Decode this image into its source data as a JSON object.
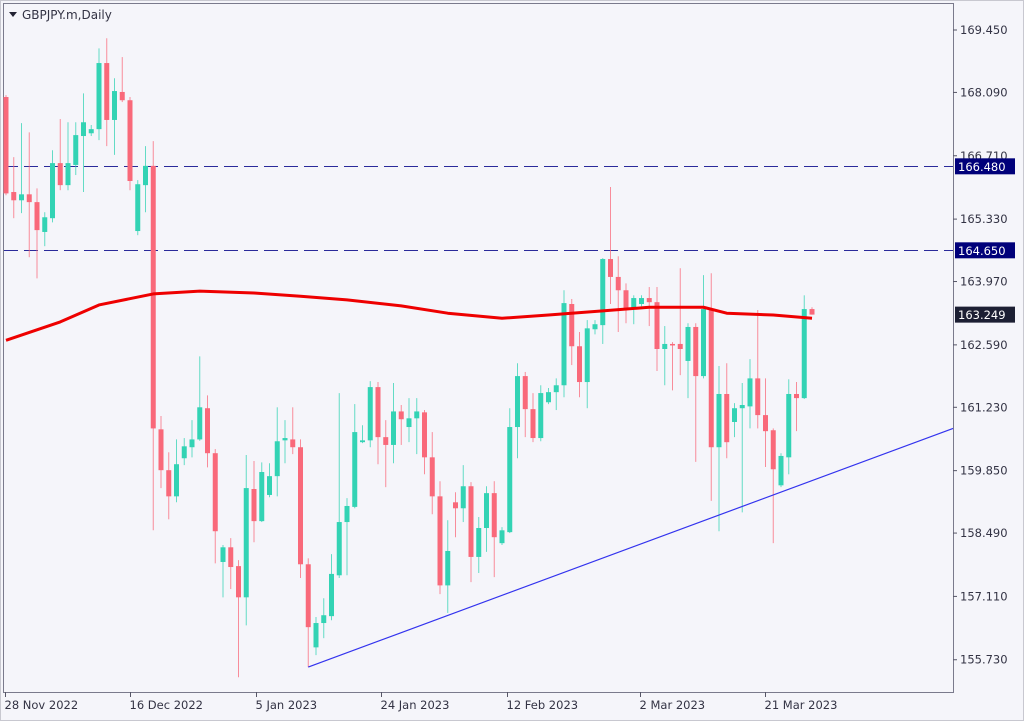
{
  "window": {
    "title": "GBPJPY.m,Daily"
  },
  "colors": {
    "bull": "#33d3b4",
    "bear": "#f9697a",
    "ma": "#ee0000",
    "hline": "#2a2a9a",
    "trend": "#3333ee",
    "bg": "#f5f5fa",
    "hline_label_bg": "#00007a",
    "price_label_bg": "#1c1f33"
  },
  "chart_data": {
    "type": "candlestick",
    "title": "GBPJPY.m,Daily",
    "ylim": [
      155.73,
      169.45
    ],
    "y_ticks": [
      "169.450",
      "168.090",
      "166.710",
      "165.330",
      "163.970",
      "162.590",
      "161.230",
      "159.850",
      "158.490",
      "157.110",
      "155.730"
    ],
    "x_ticks": [
      {
        "label": "28 Nov 2022",
        "index": 0
      },
      {
        "label": "16 Dec 2022",
        "index": 16
      },
      {
        "label": "5 Jan 2023",
        "index": 32
      },
      {
        "label": "24 Jan 2023",
        "index": 48
      },
      {
        "label": "12 Feb 2023",
        "index": 64
      },
      {
        "label": "2 Mar 2023",
        "index": 81
      },
      {
        "label": "21 Mar 2023",
        "index": 97
      }
    ],
    "ohlc_fields": [
      "open",
      "high",
      "low",
      "close"
    ],
    "candles": [
      [
        167.99,
        168.03,
        165.85,
        165.89
      ],
      [
        165.92,
        166.68,
        165.35,
        165.74
      ],
      [
        165.74,
        167.42,
        165.46,
        165.87
      ],
      [
        165.87,
        167.22,
        164.5,
        165.7
      ],
      [
        165.7,
        166.0,
        164.04,
        165.09
      ],
      [
        165.05,
        165.48,
        164.74,
        165.37
      ],
      [
        165.35,
        166.83,
        165.26,
        166.55
      ],
      [
        166.55,
        167.51,
        165.96,
        166.07
      ],
      [
        166.07,
        167.44,
        165.96,
        166.55
      ],
      [
        166.51,
        167.44,
        166.29,
        167.16
      ],
      [
        167.14,
        168.07,
        165.92,
        167.44
      ],
      [
        167.2,
        167.38,
        167.14,
        167.29
      ],
      [
        167.29,
        169.05,
        167.05,
        168.73
      ],
      [
        168.73,
        169.27,
        166.92,
        167.49
      ],
      [
        167.49,
        168.4,
        166.73,
        168.12
      ],
      [
        168.1,
        168.86,
        167.88,
        167.92
      ],
      [
        167.92,
        167.99,
        165.96,
        166.16
      ],
      [
        165.07,
        166.18,
        164.98,
        166.09
      ],
      [
        166.07,
        166.92,
        165.48,
        166.49
      ],
      [
        166.49,
        167.03,
        158.55,
        160.77
      ],
      [
        160.75,
        161.04,
        159.47,
        159.86
      ],
      [
        159.86,
        160.25,
        158.79,
        159.29
      ],
      [
        159.29,
        160.53,
        159.16,
        159.99
      ],
      [
        160.12,
        160.56,
        159.97,
        160.38
      ],
      [
        160.36,
        160.95,
        160.14,
        160.53
      ],
      [
        160.53,
        162.34,
        160.5,
        161.23
      ],
      [
        161.21,
        161.49,
        159.92,
        160.23
      ],
      [
        160.23,
        160.32,
        157.83,
        158.53
      ],
      [
        157.86,
        158.23,
        157.09,
        158.18
      ],
      [
        158.18,
        158.38,
        157.27,
        157.75
      ],
      [
        157.77,
        157.9,
        155.35,
        157.09
      ],
      [
        157.09,
        160.19,
        156.48,
        159.47
      ],
      [
        159.45,
        160.06,
        158.29,
        158.75
      ],
      [
        158.75,
        160.03,
        158.73,
        159.82
      ],
      [
        159.32,
        160.01,
        159.27,
        159.73
      ],
      [
        159.73,
        161.23,
        159.29,
        160.49
      ],
      [
        160.51,
        160.95,
        160.01,
        160.56
      ],
      [
        160.53,
        161.23,
        160.21,
        160.36
      ],
      [
        160.36,
        160.53,
        157.51,
        157.81
      ],
      [
        157.81,
        157.94,
        155.57,
        156.44
      ],
      [
        156.0,
        156.66,
        155.83,
        156.53
      ],
      [
        156.53,
        157.07,
        156.2,
        156.7
      ],
      [
        156.68,
        158.03,
        156.59,
        157.6
      ],
      [
        157.57,
        161.54,
        157.51,
        158.73
      ],
      [
        158.73,
        159.25,
        157.57,
        159.08
      ],
      [
        159.06,
        161.3,
        159.03,
        160.69
      ],
      [
        160.47,
        160.84,
        160.45,
        160.51
      ],
      [
        160.51,
        161.8,
        160.36,
        161.67
      ],
      [
        161.67,
        161.78,
        159.99,
        160.58
      ],
      [
        160.58,
        160.95,
        159.49,
        160.41
      ],
      [
        160.41,
        161.76,
        160.01,
        161.14
      ],
      [
        161.14,
        161.28,
        160.41,
        160.97
      ],
      [
        160.8,
        161.43,
        160.47,
        160.99
      ],
      [
        160.99,
        161.43,
        160.21,
        161.14
      ],
      [
        161.12,
        161.17,
        159.77,
        160.14
      ],
      [
        160.14,
        160.69,
        158.9,
        159.29
      ],
      [
        159.29,
        159.62,
        157.16,
        157.35
      ],
      [
        157.35,
        158.77,
        156.75,
        158.1
      ],
      [
        159.16,
        159.38,
        158.4,
        159.03
      ],
      [
        159.03,
        159.97,
        158.73,
        159.51
      ],
      [
        159.51,
        159.6,
        157.42,
        157.97
      ],
      [
        157.97,
        158.84,
        157.62,
        158.6
      ],
      [
        158.6,
        159.51,
        158.08,
        159.36
      ],
      [
        159.36,
        159.62,
        157.53,
        158.4
      ],
      [
        158.27,
        158.62,
        158.23,
        158.55
      ],
      [
        158.51,
        161.21,
        158.49,
        160.8
      ],
      [
        160.8,
        162.19,
        160.12,
        161.91
      ],
      [
        161.91,
        162.0,
        160.58,
        161.19
      ],
      [
        161.19,
        161.54,
        160.47,
        160.56
      ],
      [
        160.56,
        161.71,
        160.49,
        161.54
      ],
      [
        161.34,
        161.65,
        161.3,
        161.56
      ],
      [
        161.56,
        161.86,
        161.17,
        161.71
      ],
      [
        161.71,
        163.78,
        161.45,
        163.5
      ],
      [
        163.48,
        163.59,
        162.15,
        162.56
      ],
      [
        162.56,
        162.87,
        161.45,
        161.78
      ],
      [
        161.78,
        163.13,
        161.21,
        162.95
      ],
      [
        162.93,
        163.13,
        162.82,
        163.04
      ],
      [
        163.02,
        164.48,
        162.61,
        164.46
      ],
      [
        164.46,
        166.03,
        163.48,
        164.07
      ],
      [
        164.07,
        164.52,
        162.87,
        163.78
      ],
      [
        163.78,
        163.93,
        163.06,
        163.39
      ],
      [
        163.37,
        163.67,
        163.04,
        163.61
      ],
      [
        163.48,
        163.67,
        163.43,
        163.61
      ],
      [
        163.61,
        163.85,
        163.0,
        163.52
      ],
      [
        163.52,
        163.85,
        162.02,
        162.5
      ],
      [
        162.5,
        163.0,
        161.71,
        162.61
      ],
      [
        162.61,
        162.65,
        161.6,
        162.59
      ],
      [
        162.61,
        164.26,
        161.93,
        162.5
      ],
      [
        162.24,
        163.06,
        161.43,
        162.98
      ],
      [
        162.98,
        163.06,
        160.04,
        161.91
      ],
      [
        161.91,
        164.11,
        161.86,
        163.37
      ],
      [
        163.37,
        164.15,
        159.19,
        160.36
      ],
      [
        160.36,
        162.13,
        158.53,
        161.52
      ],
      [
        161.52,
        162.19,
        160.12,
        160.47
      ],
      [
        160.91,
        161.32,
        160.58,
        161.21
      ],
      [
        161.21,
        161.76,
        158.94,
        161.28
      ],
      [
        161.25,
        162.28,
        160.77,
        161.86
      ],
      [
        161.86,
        163.35,
        160.77,
        161.06
      ],
      [
        161.06,
        161.86,
        159.93,
        160.71
      ],
      [
        160.73,
        160.77,
        158.27,
        159.88
      ],
      [
        159.53,
        160.23,
        159.49,
        160.17
      ],
      [
        160.14,
        161.84,
        159.77,
        161.52
      ],
      [
        161.52,
        161.78,
        160.71,
        161.43
      ],
      [
        161.43,
        163.67,
        161.41,
        163.37
      ],
      [
        163.37,
        163.41,
        163.25,
        163.25
      ]
    ],
    "moving_average": {
      "points": [
        [
          0,
          162.69
        ],
        [
          7,
          163.09
        ],
        [
          12,
          163.46
        ],
        [
          19,
          163.7
        ],
        [
          25,
          163.76
        ],
        [
          32,
          163.72
        ],
        [
          38,
          163.65
        ],
        [
          44,
          163.57
        ],
        [
          51,
          163.44
        ],
        [
          57,
          163.28
        ],
        [
          64,
          163.17
        ],
        [
          70,
          163.24
        ],
        [
          77,
          163.33
        ],
        [
          83,
          163.41
        ],
        [
          90,
          163.41
        ],
        [
          93,
          163.28
        ],
        [
          99,
          163.24
        ],
        [
          104,
          163.17
        ]
      ]
    },
    "horizontal_lines": [
      {
        "price": 166.48,
        "label": "166.480"
      },
      {
        "price": 164.65,
        "label": "164.650"
      }
    ],
    "trendline": {
      "points": [
        [
          39,
          155.57
        ],
        [
          122.2,
          160.77
        ]
      ]
    },
    "current_price": {
      "price": 163.249,
      "label": "163.249"
    }
  }
}
